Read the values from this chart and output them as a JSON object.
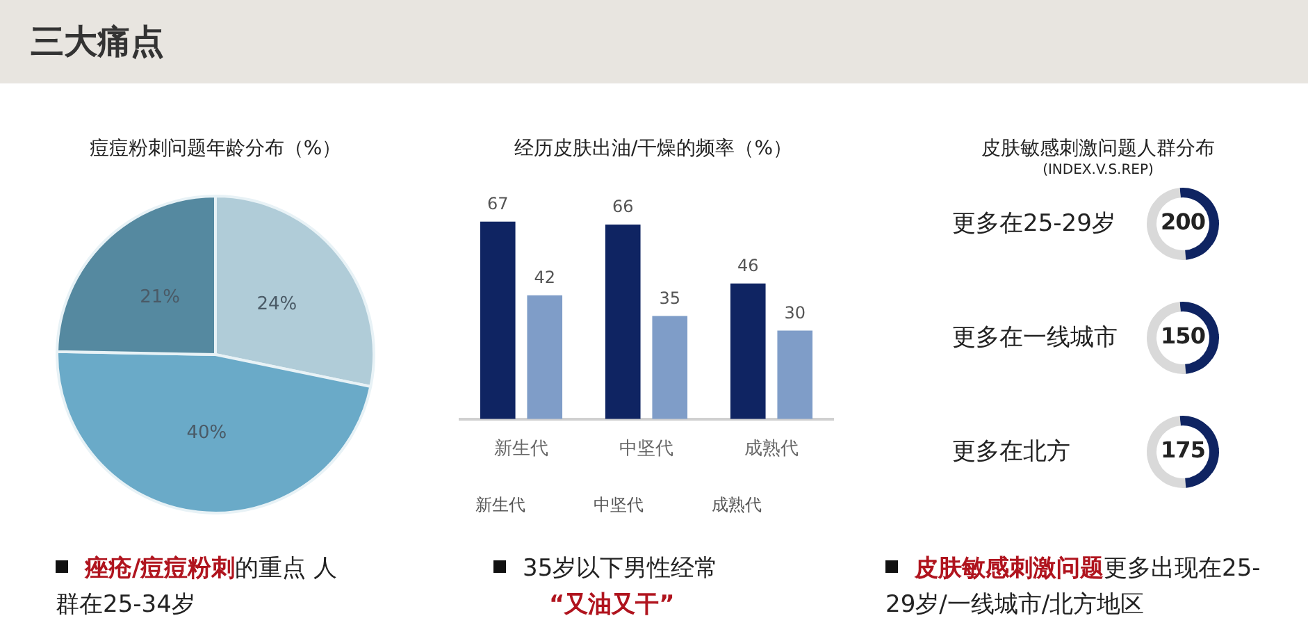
{
  "chart_data": [
    {
      "type": "pie",
      "title": "痘痘粉刺问题年龄分布（%）",
      "categories": [
        null,
        null,
        null
      ],
      "values": [
        24,
        40,
        21
      ],
      "colors": [
        "#b0ccd8",
        "#6aaac8",
        "#5589a0"
      ],
      "value_labels": [
        "24%",
        "40%",
        "21%"
      ],
      "legend": false,
      "annotations": [
        "三大痛点",
        "痤疮/痘痘粉刺",
        "的重点 人群在25-34岁"
      ]
    },
    {
      "type": "bar",
      "title": "经历皮肤出油/干燥的频率（%）",
      "categories": [
        "新生代",
        "中坚代",
        "成熟代"
      ],
      "series": [
        {
          "color": "#0f2462",
          "values": [
            67,
            66,
            46
          ]
        },
        {
          "color": "#7f9dc8",
          "values": [
            42,
            35,
            30
          ]
        }
      ],
      "data_labels": true,
      "legend": false,
      "grid": false,
      "tick_labels": "x",
      "annotations": [
        "新生代",
        "中坚代",
        "成熟代",
        "35岁以下男性经常",
        "“又油又干”"
      ]
    },
    {
      "type": "other",
      "title": "皮肤敏感刺激问题人群分布",
      "subtitle": "(INDEX.V.S.REP)",
      "categories": [
        "更多在25-29岁",
        "更多在一线城市",
        "更多在北方"
      ],
      "values": [
        200,
        150,
        175
      ],
      "data_labels": true,
      "annotations": [
        "皮肤敏感刺激问题",
        "更多出现在25-29岁/一线城市/北方地区"
      ]
    }
  ]
}
